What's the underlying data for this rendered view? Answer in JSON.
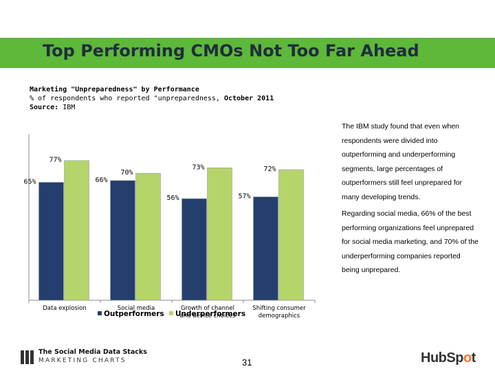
{
  "slide": {
    "title": "Top Performing CMOs Not Too Far Ahead",
    "subtitle_line1": "Marketing \"Unpreparedness\" by Performance",
    "subtitle_line2_prefix": "% of respondents who reported \"unpreparedness, ",
    "subtitle_line2_date": "October 2011",
    "source_label": "Source:",
    "source_value": "IBM",
    "side_text_1": "The IBM study found that even when respondents were divided into outperforming and underperforming segments, large percentages of outperformers still feel unprepared for many developing trends.",
    "side_text_2": "Regarding social media, 66% of the best performing organizations feel unprepared for social media marketing, and 70% of the underperforming companies reported being unprepared.",
    "page_number": "31",
    "footer_logo_line1": "The Social Media Data Stacks",
    "footer_logo_line2": "MARKETING CHARTS",
    "hubspot_text_a": "HubSp",
    "hubspot_text_dot": "o",
    "hubspot_text_b": "t"
  },
  "chart_data": {
    "type": "bar",
    "title": "",
    "xlabel": "",
    "ylabel": "",
    "ylim": [
      0,
      100
    ],
    "grid": false,
    "legend_position": "bottom",
    "categories": [
      "Data explosion",
      "Social media",
      "Growth of channel and device choices",
      "Shifting consumer demographics"
    ],
    "category_lines": [
      [
        "Data explosion"
      ],
      [
        "Social media"
      ],
      [
        "Growth of channel",
        "and device choices"
      ],
      [
        "Shifting consumer",
        "demographics"
      ]
    ],
    "series": [
      {
        "name": "Outperformers",
        "color": "#243f6e",
        "values": [
          65,
          66,
          56,
          57
        ],
        "labels": [
          "65%",
          "66%",
          "56%",
          "57%"
        ]
      },
      {
        "name": "Underperformers",
        "color": "#b5d56a",
        "values": [
          77,
          70,
          73,
          72
        ],
        "labels": [
          "77%",
          "70%",
          "73%",
          "72%"
        ]
      }
    ]
  }
}
